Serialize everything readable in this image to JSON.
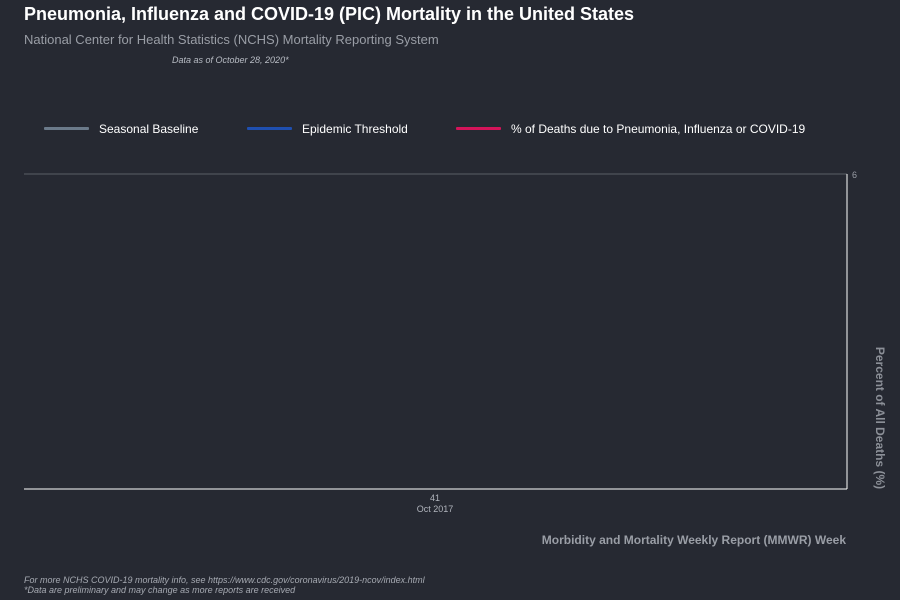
{
  "header": {
    "title": "Pneumonia, Influenza and COVID-19 (PIC) Mortality in the United States",
    "subtitle": "National Center for Health Statistics (NCHS) Mortality Reporting System",
    "as_of": "Data as of October 28, 2020*"
  },
  "legend": [
    {
      "label": "Seasonal Baseline",
      "color": "#6b7a8a"
    },
    {
      "label": "Epidemic Threshold",
      "color": "#1f4fb0"
    },
    {
      "label": "% of Deaths due to Pneumonia, Influenza or COVID-19",
      "color": "#d4145a"
    }
  ],
  "footer": {
    "line1": "For more NCHS COVID-19 mortality info, see https://www.cdc.gov/coronavirus/2019-ncov/index.html",
    "line2": "*Data are preliminary and may change as more reports are received"
  },
  "chart_data": {
    "type": "line",
    "title": "Pneumonia, Influenza and COVID-19 (PIC) Mortality in the United States",
    "subtitle": "National Center for Health Statistics (NCHS) Mortality Reporting System",
    "xlabel": "Morbidity and Mortality Weekly Report (MMWR) Week",
    "ylabel": "Percent of All Deaths (%)",
    "x_ticks": [
      {
        "week": "41",
        "period": "Oct 2017"
      }
    ],
    "y_ticks": [
      6
    ],
    "y_axis_side": "right",
    "grid": true,
    "legend_position": "top",
    "series": [
      {
        "name": "Seasonal Baseline",
        "color": "#6b7a8a",
        "values": []
      },
      {
        "name": "Epidemic Threshold",
        "color": "#1f4fb0",
        "values": []
      },
      {
        "name": "% of Deaths due to Pneumonia, Influenza or COVID-19",
        "color": "#d4145a",
        "values": []
      }
    ]
  }
}
